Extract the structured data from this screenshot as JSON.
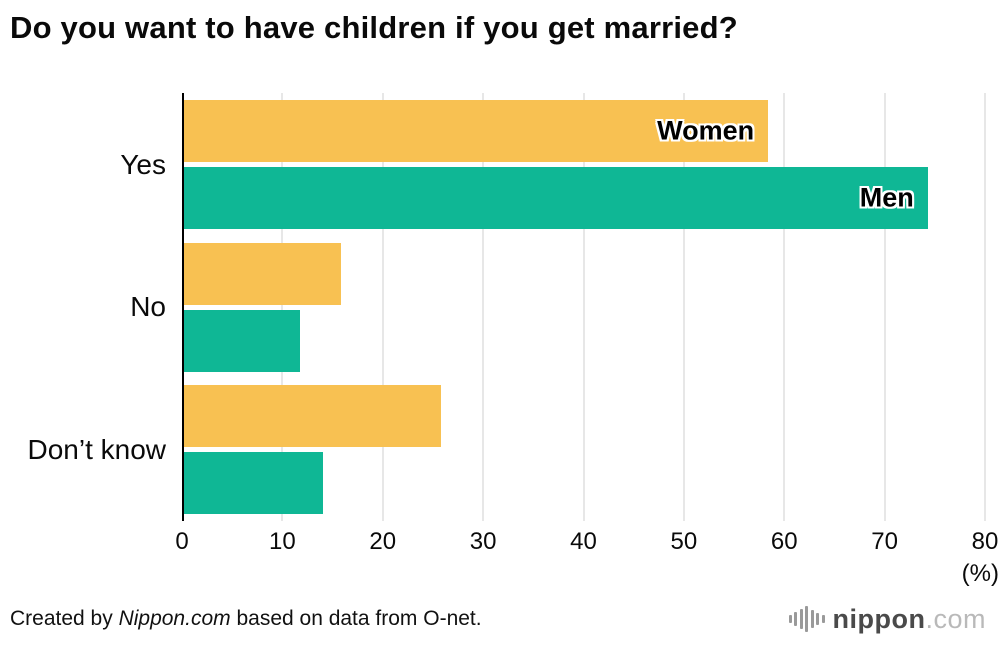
{
  "title": "Do you want to have children if you get married?",
  "chart_data": {
    "type": "bar",
    "orientation": "horizontal",
    "title": "Do you want to have children if you get married?",
    "categories": [
      "Yes",
      "No",
      "Don’t know"
    ],
    "series": [
      {
        "name": "Women",
        "color": "#F8C152",
        "values": [
          58.4,
          15.8,
          25.8
        ]
      },
      {
        "name": "Men",
        "color": "#0FB795",
        "values": [
          74.3,
          11.8,
          14.0
        ]
      }
    ],
    "xlabel": "(%)",
    "ylabel": "",
    "xlim": [
      0,
      80
    ],
    "xticks": [
      0,
      10,
      20,
      30,
      40,
      50,
      60,
      70,
      80
    ],
    "grid": true,
    "legend_position": "on-bars",
    "series_labels_on_first_group": [
      "Women",
      "Men"
    ]
  },
  "footer": {
    "credit_prefix": "Created by ",
    "credit_source": "Nippon.com",
    "credit_suffix": " based on data from O-net.",
    "logo_text": "nippon",
    "logo_suffix": ".com"
  }
}
